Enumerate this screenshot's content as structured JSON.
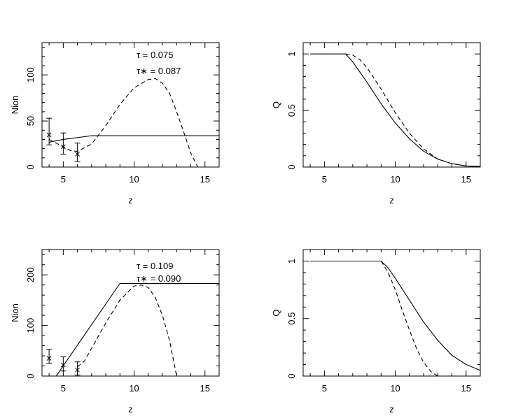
{
  "chart_data": [
    {
      "type": "line",
      "xlabel": "z",
      "ylabel": "Nion",
      "xlim": [
        3.5,
        16
      ],
      "ylim": [
        0,
        135
      ],
      "xticks": [
        5,
        10,
        15
      ],
      "yticks": [
        0,
        50,
        100
      ],
      "annotations": [
        "τ  =  0.075",
        "τ∗  =  0.087"
      ],
      "series": [
        {
          "style": "solid",
          "x": [
            4,
            5,
            6,
            6.5,
            7,
            8,
            16
          ],
          "y": [
            27,
            30,
            32,
            33,
            34,
            34,
            34
          ]
        },
        {
          "style": "dashed",
          "x": [
            4,
            5,
            5.5,
            6,
            7,
            8,
            9,
            10,
            11,
            11.5,
            12,
            12.5,
            13,
            13.5,
            14,
            14.5
          ],
          "y": [
            30,
            22,
            18,
            17,
            25,
            45,
            68,
            86,
            95,
            96,
            91,
            80,
            60,
            38,
            15,
            0
          ]
        }
      ],
      "errorbars": [
        {
          "x": 4,
          "y": 35,
          "ylo": 24,
          "yhi": 53
        },
        {
          "x": 5,
          "y": 22,
          "ylo": 14,
          "yhi": 37
        },
        {
          "x": 6,
          "y": 14,
          "ylo": 6,
          "yhi": 26
        }
      ]
    },
    {
      "type": "line",
      "xlabel": "z",
      "ylabel": "Q",
      "xlim": [
        3.5,
        16
      ],
      "ylim": [
        0,
        1.1
      ],
      "xticks": [
        5,
        10,
        15
      ],
      "yticks": [
        0,
        0.5,
        1
      ],
      "ytick_labels": [
        "0",
        "0.5",
        "1"
      ],
      "series": [
        {
          "style": "solid",
          "x": [
            4,
            5,
            6,
            6.5,
            7,
            8,
            9,
            10,
            11,
            12,
            13,
            14,
            15,
            16
          ],
          "y": [
            1,
            1,
            1,
            1,
            0.93,
            0.75,
            0.56,
            0.39,
            0.25,
            0.14,
            0.07,
            0.03,
            0.01,
            0.005
          ]
        },
        {
          "style": "dashed",
          "x": [
            6.5,
            7,
            7.5,
            8,
            9,
            10,
            11,
            12,
            13,
            14,
            15,
            16
          ],
          "y": [
            1,
            0.99,
            0.95,
            0.88,
            0.69,
            0.48,
            0.3,
            0.16,
            0.07,
            0.03,
            0.01,
            0.005
          ]
        }
      ]
    },
    {
      "type": "line",
      "xlabel": "z",
      "ylabel": "Nion",
      "xlim": [
        3.5,
        16
      ],
      "ylim": [
        0,
        250
      ],
      "xticks": [
        5,
        10,
        15
      ],
      "yticks": [
        0,
        100,
        200
      ],
      "annotations": [
        "τ  =  0.109",
        "τ∗  =  0.090"
      ],
      "series": [
        {
          "style": "solid",
          "x": [
            4.5,
            9,
            16
          ],
          "y": [
            0,
            183,
            183
          ]
        },
        {
          "style": "dashed",
          "x": [
            6,
            6.5,
            7,
            8,
            9,
            10,
            10.5,
            11,
            11.5,
            12,
            12.5,
            13
          ],
          "y": [
            18,
            30,
            55,
            105,
            150,
            178,
            180,
            175,
            155,
            120,
            70,
            0
          ]
        }
      ],
      "errorbars": [
        {
          "x": 4,
          "y": 35,
          "ylo": 25,
          "yhi": 53
        },
        {
          "x": 5,
          "y": 22,
          "ylo": 10,
          "yhi": 38
        },
        {
          "x": 6,
          "y": 12,
          "ylo": 2,
          "yhi": 28
        }
      ]
    },
    {
      "type": "line",
      "xlabel": "z",
      "ylabel": "Q",
      "xlim": [
        3.5,
        16
      ],
      "ylim": [
        0,
        1.1
      ],
      "xticks": [
        5,
        10,
        15
      ],
      "yticks": [
        0,
        0.5,
        1
      ],
      "ytick_labels": [
        "0",
        "0.5",
        "1"
      ],
      "series": [
        {
          "style": "solid",
          "x": [
            4,
            5,
            6,
            7,
            8,
            9,
            9.5,
            10,
            11,
            12,
            13,
            14,
            15,
            16
          ],
          "y": [
            1,
            1,
            1,
            1,
            1,
            1,
            0.94,
            0.85,
            0.66,
            0.47,
            0.31,
            0.18,
            0.1,
            0.05
          ]
        },
        {
          "style": "dashed",
          "x": [
            9,
            9.5,
            10,
            10.5,
            11,
            11.5,
            12,
            12.5,
            13
          ],
          "y": [
            1,
            0.9,
            0.75,
            0.57,
            0.4,
            0.24,
            0.12,
            0.04,
            0
          ]
        }
      ]
    }
  ]
}
